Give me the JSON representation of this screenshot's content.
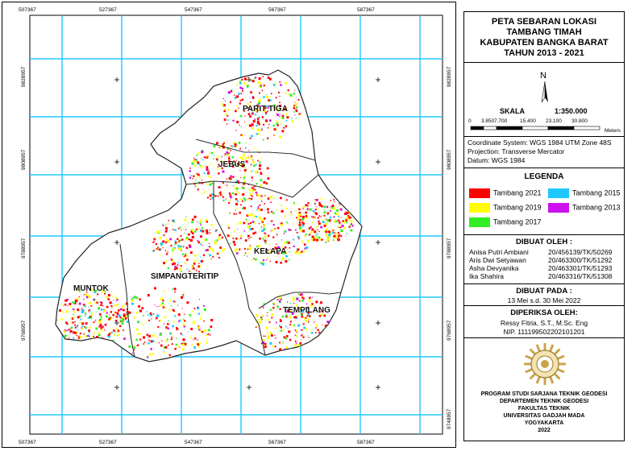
{
  "map": {
    "top_ticks": [
      "507367",
      "527367",
      "547367",
      "567367",
      "587367"
    ],
    "bottom_ticks": [
      "507367",
      "527367",
      "547367",
      "567367",
      "587367"
    ],
    "left_ticks": [
      "9828957",
      "9808957",
      "9788957",
      "9768957"
    ],
    "right_ticks": [
      "9828957",
      "9808957",
      "9788957",
      "9768957",
      "9748957"
    ],
    "regions": [
      "PARIT TIGA",
      "JEBUS",
      "KELAPA",
      "SIMPANGTERITIP",
      "MUNTOK",
      "TEMPILANG"
    ]
  },
  "title": {
    "line1": "PETA SEBARAN LOKASI",
    "line2": "TAMBANG TIMAH",
    "line3": "KABUPATEN BANGKA BARAT",
    "line4": "TAHUN 2013 - 2021"
  },
  "north": {
    "label": "N"
  },
  "scale": {
    "label": "SKALA",
    "ratio": "1:350.000",
    "ticks": [
      "0",
      "3.850",
      "7.700",
      "15.400",
      "23.100",
      "30.800"
    ],
    "unit": "Meters"
  },
  "coords": {
    "line1": "Coordinate System: WGS 1984 UTM Zone 48S",
    "line2": "Projection: Transverse Mercator",
    "line3": "Datum: WGS 1984"
  },
  "legend": {
    "title": "LEGENDA",
    "items": [
      {
        "label": "Tambang 2021",
        "color": "#ff0000"
      },
      {
        "label": "Tambang 2015",
        "color": "#1ec8ff"
      },
      {
        "label": "Tambang 2019",
        "color": "#ffff00"
      },
      {
        "label": "Tambang 2013",
        "color": "#cc11ee"
      },
      {
        "label": "Tambang 2017",
        "color": "#33ee22"
      }
    ]
  },
  "made_by": {
    "title": "DIBUAT OLEH :",
    "people": [
      {
        "name": "Anisa Putri Ambiani",
        "id": "20/456139/TK/50269"
      },
      {
        "name": "Aris Dwi Setyawan",
        "id": "20/463300/TK/51292"
      },
      {
        "name": "Asha Devyanika",
        "id": "20/463301/TK/51293"
      },
      {
        "name": "Ika Shahira",
        "id": "20/463316/TK/51308"
      }
    ]
  },
  "made_on": {
    "title": "DIBUAT PADA :",
    "value": "13 Mei s.d. 30 Mei 2022"
  },
  "checked_by": {
    "title": "DIPERIKSA OLEH:",
    "name": "Ressy Fitria, S.T., M.Sc. Eng",
    "nip": "NIP. 111199502202101201"
  },
  "footer": {
    "line1": "PROGRAM STUDI SARJANA TEKNIK GEODESI",
    "line2": "DEPARTEMEN TEKNIK GEODESI",
    "line3": "FAKULTAS TEKNIK",
    "line4": "UNIVERSITAS GADJAH MADA",
    "line5": "YOGYAKARTA",
    "line6": "2022"
  },
  "colors": {
    "grid": "#1ec8ff",
    "island": "#ffffff",
    "outline": "#222222"
  }
}
